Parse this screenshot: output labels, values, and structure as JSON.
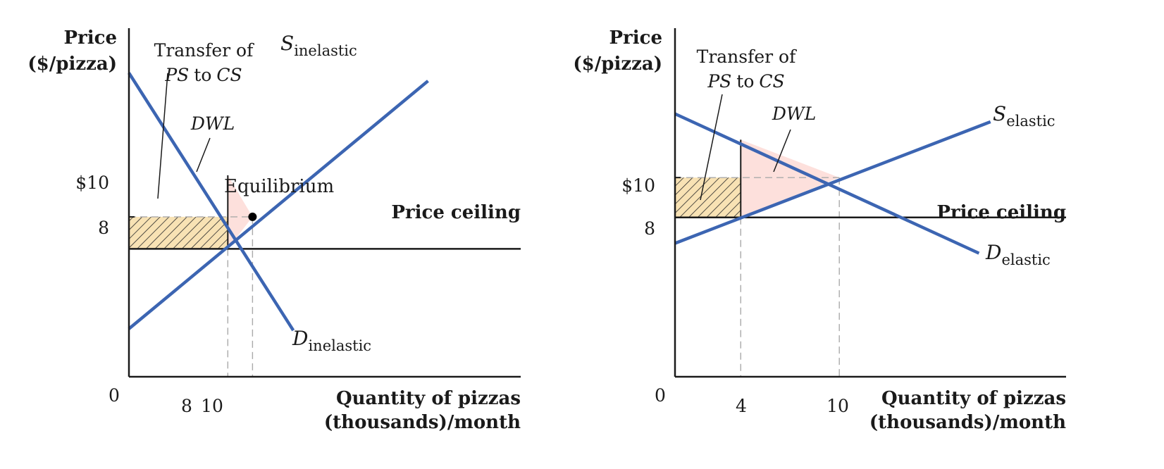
{
  "chart_data": [
    {
      "type": "line",
      "panel": "inelastic",
      "y_axis_label": [
        "Price",
        "($/pizza)"
      ],
      "x_axis_label": [
        "Quantity of pizzas",
        "(thousands)/month"
      ],
      "origin_label": "0",
      "x_ticks": [
        {
          "value": 8,
          "label": "8"
        },
        {
          "value": 10,
          "label": "10"
        }
      ],
      "y_ticks": [
        {
          "value": 10,
          "label": "$10"
        },
        {
          "value": 8,
          "label": "8"
        }
      ],
      "xlim": [
        0,
        31.7
      ],
      "ylim": [
        0,
        21.8
      ],
      "series": [
        {
          "name_main": "S",
          "name_sub": "inelastic",
          "x": [
            0,
            24.2
          ],
          "y": [
            3.0,
            18.5
          ]
        },
        {
          "name_main": "D",
          "name_sub": "inelastic",
          "x": [
            0,
            13.3
          ],
          "y": [
            19.0,
            2.9
          ]
        }
      ],
      "price_ceiling": {
        "value": 8,
        "label": "Price ceiling"
      },
      "equilibrium": {
        "x": 10,
        "y": 10,
        "label": "Equilibrium"
      },
      "ps_transfer": {
        "x": [
          0,
          8
        ],
        "y": [
          8,
          10
        ],
        "label": [
          "Transfer of",
          "PS",
          "to",
          "CS"
        ]
      },
      "dwl": {
        "label": "DWL",
        "points": [
          [
            8,
            12.6
          ],
          [
            8,
            8
          ],
          [
            10,
            10
          ]
        ]
      }
    },
    {
      "type": "line",
      "panel": "elastic",
      "y_axis_label": [
        "Price",
        "($/pizza)"
      ],
      "x_axis_label": [
        "Quantity of pizzas",
        "(thousands)/month"
      ],
      "origin_label": "0",
      "x_ticks": [
        {
          "value": 4,
          "label": "4"
        },
        {
          "value": 10,
          "label": "10"
        }
      ],
      "y_ticks": [
        {
          "value": 10,
          "label": "$10"
        },
        {
          "value": 8,
          "label": "8"
        }
      ],
      "xlim": [
        0,
        23.8
      ],
      "ylim": [
        0,
        17.5
      ],
      "series": [
        {
          "name_main": "S",
          "name_sub": "elastic",
          "x": [
            0,
            19.2
          ],
          "y": [
            6.7,
            12.8
          ]
        },
        {
          "name_main": "D",
          "name_sub": "elastic",
          "x": [
            0,
            18.5
          ],
          "y": [
            13.2,
            6.2
          ]
        }
      ],
      "price_ceiling": {
        "value": 8,
        "label": "Price ceiling"
      },
      "equilibrium": {
        "x": 10,
        "y": 10,
        "label": ""
      },
      "ps_transfer": {
        "x": [
          0,
          4
        ],
        "y": [
          8,
          10
        ],
        "label": [
          "Transfer of",
          "PS",
          "to",
          "CS"
        ]
      },
      "dwl": {
        "label": "DWL",
        "points": [
          [
            4,
            11.9
          ],
          [
            4,
            8
          ],
          [
            10,
            10
          ]
        ]
      }
    }
  ]
}
